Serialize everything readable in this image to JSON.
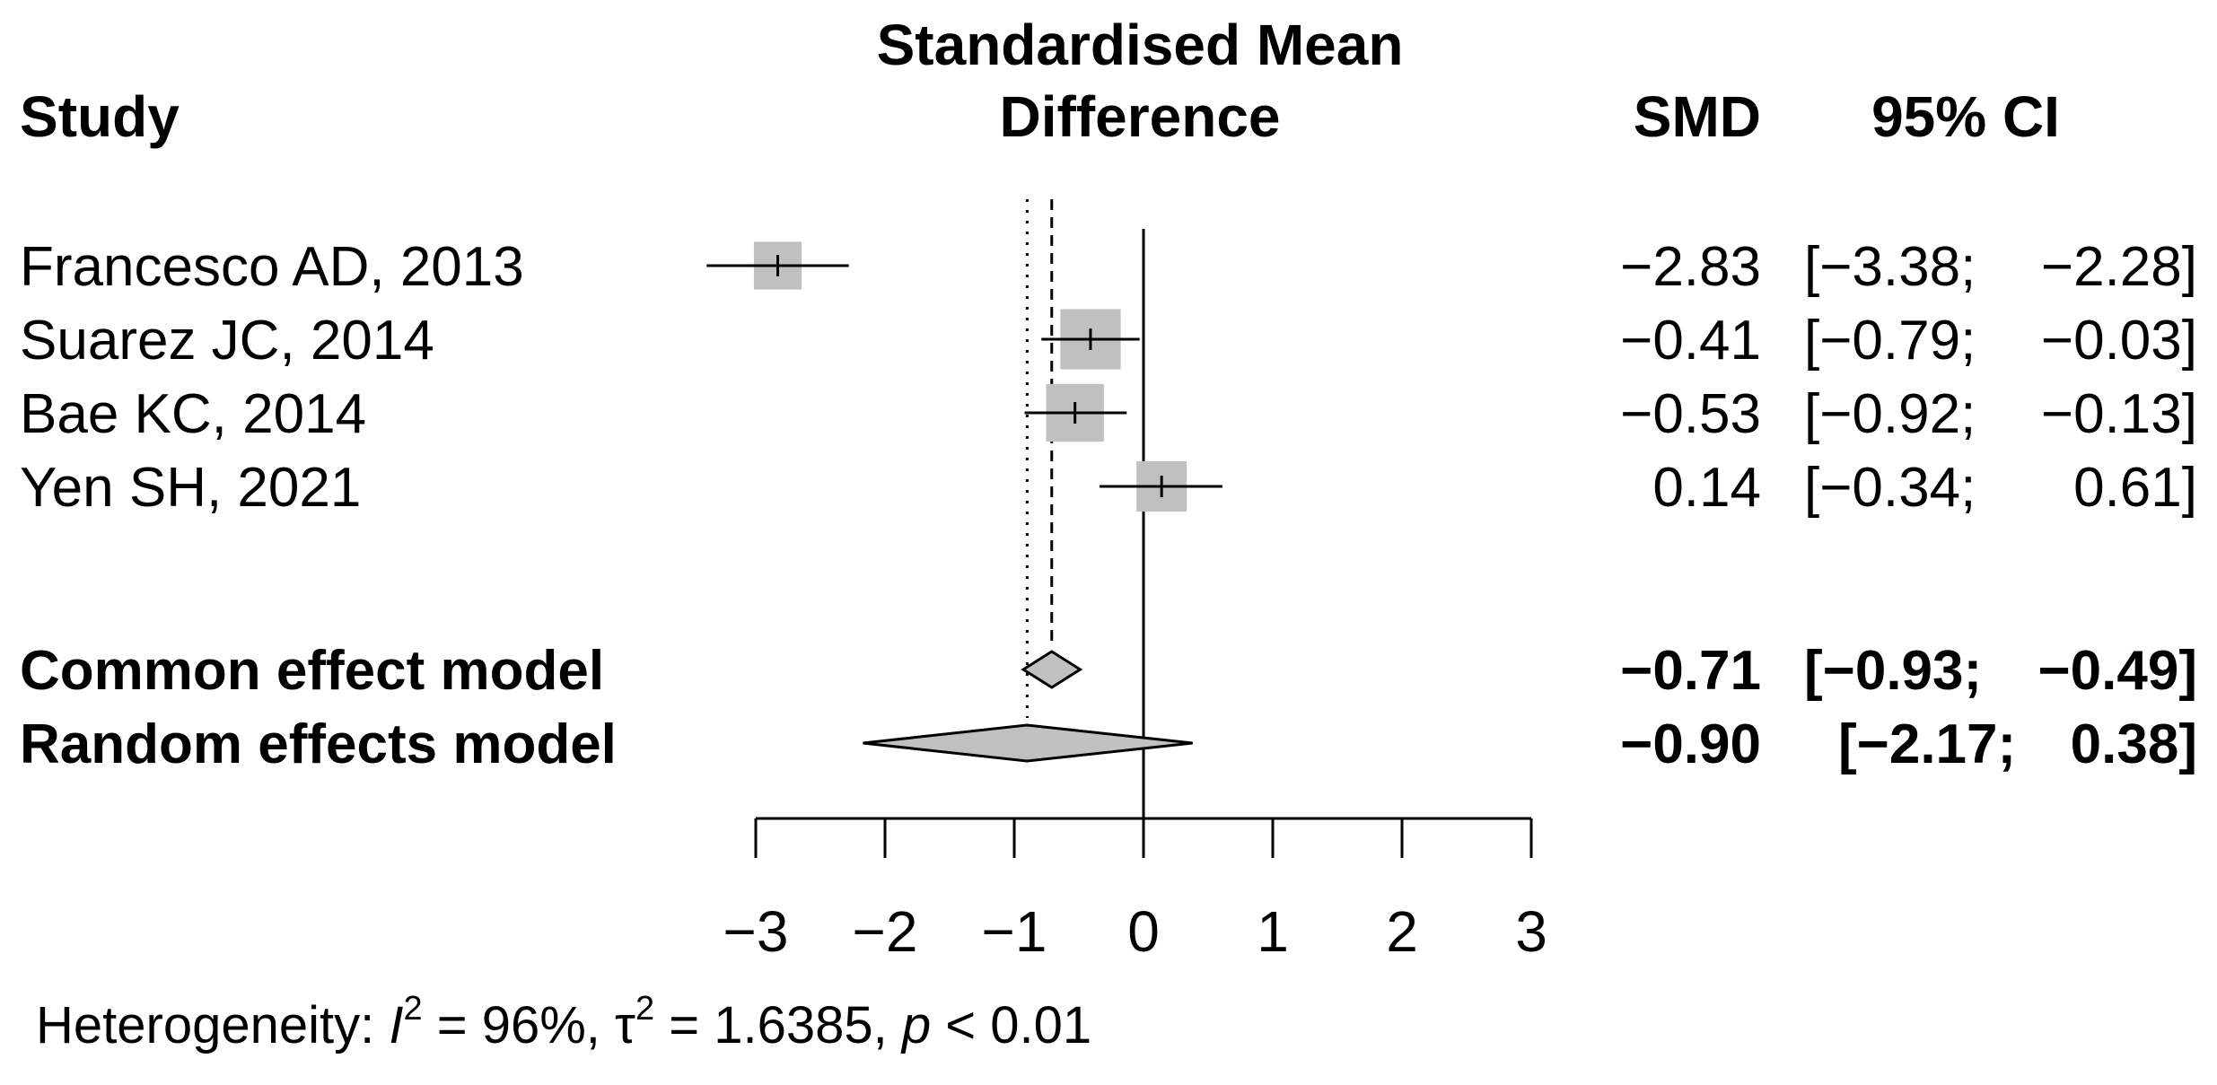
{
  "chart_data": {
    "type": "forest",
    "headers": {
      "study": "Study",
      "effect_line1": "Standardised Mean",
      "effect_line2": "Difference",
      "smd": "SMD",
      "ci": "95% CI"
    },
    "studies": [
      {
        "name": "Francesco AD, 2013",
        "smd": -2.83,
        "lower": -3.38,
        "upper": -2.28,
        "smd_text": "−2.83",
        "ci_lower_text": "[−3.38;",
        "ci_upper_text": "−2.28]",
        "weight": 0.95
      },
      {
        "name": "Suarez JC, 2014",
        "smd": -0.41,
        "lower": -0.79,
        "upper": -0.03,
        "smd_text": "−0.41",
        "ci_lower_text": "[−0.79;",
        "ci_upper_text": "−0.03]",
        "weight": 1.2
      },
      {
        "name": "Bae KC, 2014",
        "smd": -0.53,
        "lower": -0.92,
        "upper": -0.13,
        "smd_text": "−0.53",
        "ci_lower_text": "[−0.92;",
        "ci_upper_text": "−0.13]",
        "weight": 1.15
      },
      {
        "name": "Yen SH, 2021",
        "smd": 0.14,
        "lower": -0.34,
        "upper": 0.61,
        "smd_text": "0.14",
        "ci_lower_text": "[−0.34;",
        "ci_upper_text": "0.61]",
        "weight": 1.0
      }
    ],
    "summaries": [
      {
        "name": "Common effect model",
        "smd": -0.71,
        "lower": -0.93,
        "upper": -0.49,
        "smd_text": "−0.71",
        "ci_lower_text": "[−0.93;",
        "ci_upper_text": "−0.49]"
      },
      {
        "name": "Random effects model",
        "smd": -0.9,
        "lower": -2.17,
        "upper": 0.38,
        "smd_text": "−0.90",
        "ci_lower_text": "[−2.17;",
        "ci_upper_text": "0.38]"
      }
    ],
    "x_axis": {
      "ticks": [
        -3,
        -2,
        -1,
        0,
        1,
        2,
        3
      ],
      "tick_labels": [
        "−3",
        "−2",
        "−1",
        "0",
        "1",
        "2",
        "3"
      ],
      "range": [
        -3,
        3
      ],
      "null_value": 0
    },
    "heterogeneity": {
      "prefix": "Heterogeneity: ",
      "i2_symbol": "I",
      "i2_value": " = 96%, ",
      "tau2_symbol": "τ",
      "tau2_value": " = 1.6385, ",
      "p_symbol": "p",
      "p_value": " < 0.01",
      "sup": "2"
    },
    "colors": {
      "box": "#c0c0c0",
      "diamond": "#c0c0c0",
      "line": "#000000"
    }
  }
}
